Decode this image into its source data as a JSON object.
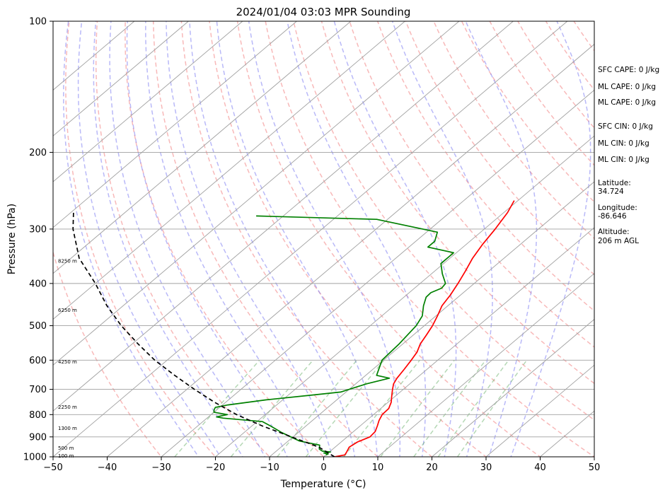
{
  "chart_data": {
    "type": "line",
    "subtype": "skew-t log-p sounding",
    "title": "2024/01/04 03:03 MPR Sounding",
    "xlabel": "Temperature (°C)",
    "ylabel": "Pressure (hPa)",
    "xlim": [
      -50,
      50
    ],
    "ylim": [
      1000,
      100
    ],
    "y_scale": "log",
    "x_ticks": [
      -50,
      -40,
      -30,
      -20,
      -10,
      0,
      10,
      20,
      30,
      40,
      50
    ],
    "y_ticks": [
      100,
      200,
      300,
      400,
      500,
      600,
      700,
      800,
      900,
      1000
    ],
    "grid": "horizontal isobars",
    "series": [
      {
        "role": "temperature",
        "color": "#ff0000",
        "points": [
          [
            1000,
            2.0
          ],
          [
            990,
            3.5
          ],
          [
            975,
            3.2
          ],
          [
            950,
            2.6
          ],
          [
            925,
            3.0
          ],
          [
            900,
            4.2
          ],
          [
            875,
            4.0
          ],
          [
            850,
            3.2
          ],
          [
            825,
            2.3
          ],
          [
            800,
            1.6
          ],
          [
            775,
            1.5
          ],
          [
            750,
            0.6
          ],
          [
            725,
            -0.7
          ],
          [
            700,
            -2.0
          ],
          [
            680,
            -3.0
          ],
          [
            660,
            -3.6
          ],
          [
            630,
            -4.2
          ],
          [
            600,
            -4.9
          ],
          [
            575,
            -5.6
          ],
          [
            550,
            -6.8
          ],
          [
            525,
            -7.6
          ],
          [
            500,
            -8.5
          ],
          [
            475,
            -9.7
          ],
          [
            450,
            -11.1
          ],
          [
            425,
            -11.9
          ],
          [
            400,
            -13.0
          ],
          [
            375,
            -14.3
          ],
          [
            350,
            -15.8
          ],
          [
            325,
            -17.0
          ],
          [
            300,
            -18.0
          ],
          [
            275,
            -19.3
          ],
          [
            258,
            -20.7
          ]
        ]
      },
      {
        "role": "dewpoint",
        "color": "#008000",
        "points": [
          [
            990,
            0.0
          ],
          [
            985,
            0.2
          ],
          [
            980,
            -0.8
          ],
          [
            975,
            0.2
          ],
          [
            970,
            -1.5
          ],
          [
            960,
            -2.5
          ],
          [
            940,
            -3.3
          ],
          [
            920,
            -7.9
          ],
          [
            880,
            -13.0
          ],
          [
            850,
            -16.5
          ],
          [
            830,
            -19.0
          ],
          [
            815,
            -27.0
          ],
          [
            810,
            -28.5
          ],
          [
            800,
            -27.0
          ],
          [
            790,
            -30.0
          ],
          [
            780,
            -30.5
          ],
          [
            770,
            -30.8
          ],
          [
            760,
            -29.0
          ],
          [
            740,
            -23.0
          ],
          [
            720,
            -15.0
          ],
          [
            710,
            -11.0
          ],
          [
            680,
            -8.0
          ],
          [
            660,
            -5.0
          ],
          [
            650,
            -8.0
          ],
          [
            600,
            -10.3
          ],
          [
            550,
            -10.7
          ],
          [
            500,
            -11.5
          ],
          [
            475,
            -12.5
          ],
          [
            450,
            -14.5
          ],
          [
            430,
            -15.9
          ],
          [
            420,
            -16.0
          ],
          [
            410,
            -15.0
          ],
          [
            400,
            -15.3
          ],
          [
            380,
            -18.0
          ],
          [
            360,
            -20.5
          ],
          [
            340,
            -20.5
          ],
          [
            330,
            -26.5
          ],
          [
            320,
            -26.5
          ],
          [
            305,
            -28.0
          ],
          [
            285,
            -42.0
          ],
          [
            280,
            -65.0
          ]
        ]
      },
      {
        "role": "parcel",
        "color": "#000000",
        "style": "dashed",
        "points": [
          [
            1000,
            2.0
          ],
          [
            950,
            -3.0
          ],
          [
            900,
            -10.3
          ],
          [
            850,
            -18.0
          ],
          [
            800,
            -25.3
          ],
          [
            750,
            -32.0
          ],
          [
            700,
            -38.6
          ],
          [
            650,
            -45.3
          ],
          [
            600,
            -52.3
          ],
          [
            550,
            -59.0
          ],
          [
            500,
            -66.0
          ],
          [
            450,
            -73.0
          ],
          [
            400,
            -80.0
          ],
          [
            350,
            -88.5
          ],
          [
            300,
            -96.0
          ],
          [
            275,
            -99.5
          ]
        ]
      }
    ],
    "height_labels": [
      {
        "p": 995,
        "text": "100 m"
      },
      {
        "p": 955,
        "text": "500 m"
      },
      {
        "p": 860,
        "text": "1300 m"
      },
      {
        "p": 768,
        "text": "2250 m"
      },
      {
        "p": 605,
        "text": "4250 m"
      },
      {
        "p": 460,
        "text": "6250 m"
      },
      {
        "p": 355,
        "text": "8250 m"
      }
    ],
    "stats": [
      "SFC CAPE: 0 J/kg",
      "ML CAPE: 0 J/kg",
      "ML CAPE: 0 J/kg",
      "SFC CIN: 0 J/kg",
      "ML CIN: 0 J/kg",
      "ML CIN: 0 J/kg",
      "Latitude:",
      "34.724",
      "Longitude:",
      "-86.646",
      "Altitude:",
      "206 m AGL"
    ],
    "colors": {
      "isotherm": "#a0a0a0",
      "dry_adiabat": "#f28080",
      "moist_adiabat": "#8080f2",
      "mixing_ratio": "#5aa85a"
    }
  }
}
